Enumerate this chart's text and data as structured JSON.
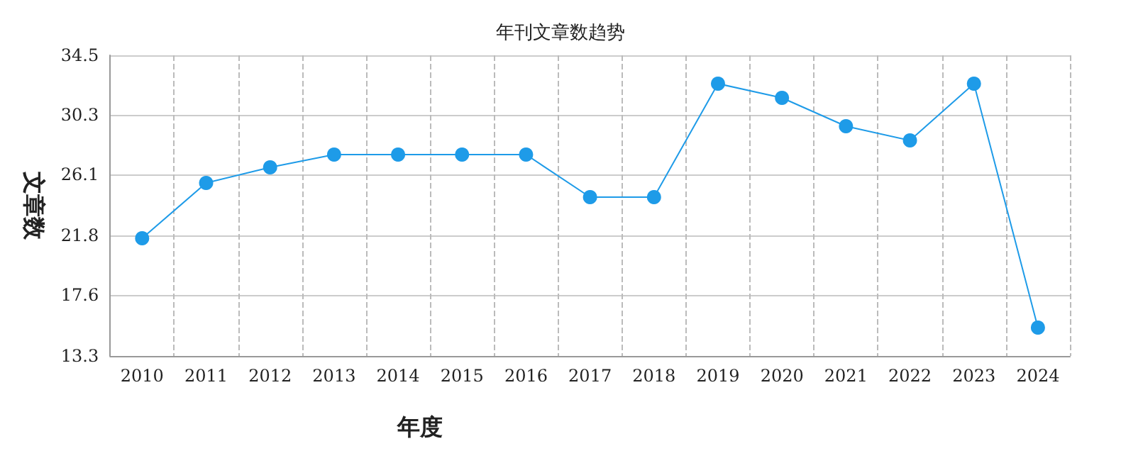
{
  "chart_data": {
    "type": "line",
    "title": "年刊文章数趋势",
    "xlabel": "年度",
    "ylabel": "文章数",
    "categories": [
      "2010",
      "2011",
      "2012",
      "2013",
      "2014",
      "2015",
      "2016",
      "2017",
      "2018",
      "2019",
      "2020",
      "2021",
      "2022",
      "2023",
      "2024"
    ],
    "series": [
      {
        "color": "#1e9be8",
        "values": [
          21.6,
          25.5,
          26.6,
          27.5,
          27.5,
          27.5,
          27.5,
          24.5,
          24.5,
          32.5,
          31.5,
          29.5,
          28.5,
          32.5,
          15.3
        ]
      }
    ],
    "ylim": [
      13.3,
      34.5
    ],
    "yticks": [
      13.3,
      17.6,
      21.8,
      26.1,
      30.3,
      34.5
    ],
    "grid": true,
    "marker": "circle",
    "line_style": "solid"
  }
}
